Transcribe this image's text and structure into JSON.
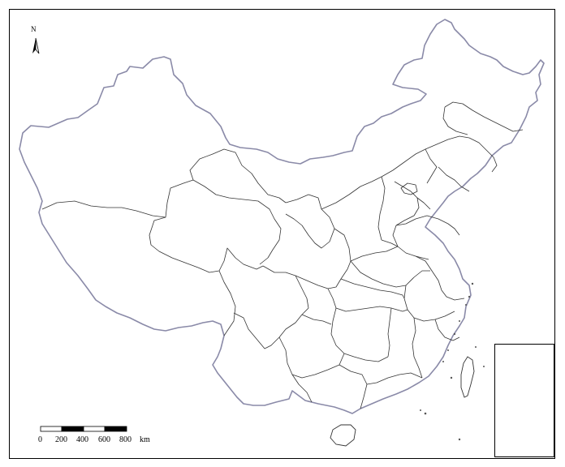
{
  "map": {
    "north_label": "N",
    "scale_labels": [
      "0",
      "200",
      "400",
      "600",
      "800",
      "km"
    ],
    "colors": {
      "frame": "#000000",
      "national_border": "#8888aa",
      "provincial_border": "#333333",
      "scale_fill": "#000000"
    },
    "icons": {
      "north_arrow": "north-arrow-icon"
    }
  }
}
